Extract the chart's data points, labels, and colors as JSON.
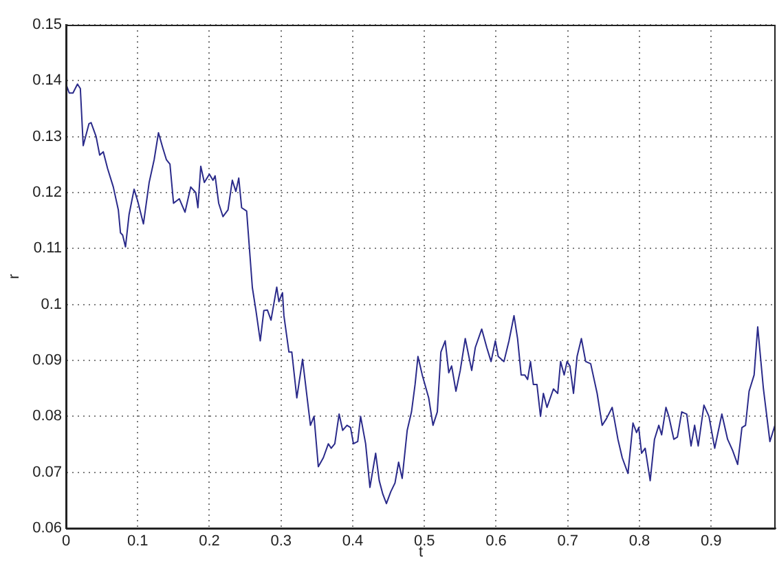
{
  "chart_data": {
    "type": "line",
    "xlabel": "t",
    "ylabel": "r",
    "xlim": [
      0,
      0.99
    ],
    "ylim": [
      0.06,
      0.15
    ],
    "xticks": [
      0,
      0.1,
      0.2,
      0.3,
      0.4,
      0.5,
      0.6,
      0.7,
      0.8,
      0.9
    ],
    "yticks": [
      0.06,
      0.07,
      0.08,
      0.09,
      0.1,
      0.11,
      0.12,
      0.13,
      0.14,
      0.15
    ],
    "grid": true,
    "marker": "none",
    "line_style": "solid",
    "x": [
      0,
      0.0045,
      0.0097,
      0.016,
      0.02,
      0.024,
      0.032,
      0.035,
      0.042,
      0.047,
      0.052,
      0.058,
      0.066,
      0.073,
      0.076,
      0.079,
      0.083,
      0.088,
      0.095,
      0.1,
      0.108,
      0.116,
      0.123,
      0.129,
      0.135,
      0.14,
      0.145,
      0.15,
      0.158,
      0.166,
      0.174,
      0.181,
      0.184,
      0.188,
      0.193,
      0.2,
      0.205,
      0.208,
      0.213,
      0.219,
      0.226,
      0.232,
      0.237,
      0.241,
      0.245,
      0.252,
      0.26,
      0.265,
      0.271,
      0.276,
      0.281,
      0.286,
      0.294,
      0.297,
      0.302,
      0.304,
      0.311,
      0.315,
      0.322,
      0.33,
      0.341,
      0.346,
      0.352,
      0.359,
      0.366,
      0.37,
      0.375,
      0.381,
      0.386,
      0.392,
      0.397,
      0.401,
      0.407,
      0.411,
      0.418,
      0.424,
      0.432,
      0.437,
      0.442,
      0.447,
      0.453,
      0.459,
      0.464,
      0.469,
      0.476,
      0.482,
      0.487,
      0.491,
      0.497,
      0.506,
      0.512,
      0.518,
      0.523,
      0.529,
      0.534,
      0.538,
      0.544,
      0.55,
      0.557,
      0.566,
      0.571,
      0.58,
      0.587,
      0.593,
      0.599,
      0.603,
      0.611,
      0.618,
      0.625,
      0.63,
      0.635,
      0.64,
      0.644,
      0.648,
      0.652,
      0.657,
      0.662,
      0.666,
      0.671,
      0.68,
      0.686,
      0.69,
      0.695,
      0.699,
      0.703,
      0.708,
      0.713,
      0.719,
      0.725,
      0.732,
      0.741,
      0.748,
      0.754,
      0.762,
      0.77,
      0.776,
      0.784,
      0.791,
      0.796,
      0.799,
      0.803,
      0.808,
      0.815,
      0.821,
      0.827,
      0.831,
      0.837,
      0.841,
      0.848,
      0.853,
      0.859,
      0.866,
      0.872,
      0.877,
      0.882,
      0.89,
      0.897,
      0.905,
      0.915,
      0.923,
      0.93,
      0.937,
      0.943,
      0.948,
      0.953,
      0.96,
      0.965,
      0.973,
      0.982,
      0.99
    ],
    "series": [
      {
        "color": "#2a2a8a",
        "values": [
          0.1394,
          0.1378,
          0.1378,
          0.1394,
          0.1386,
          0.1284,
          0.1323,
          0.1325,
          0.13,
          0.1267,
          0.1273,
          0.1243,
          0.121,
          0.1169,
          0.1128,
          0.1124,
          0.1103,
          0.1161,
          0.1206,
          0.1185,
          0.1144,
          0.1218,
          0.1259,
          0.1307,
          0.128,
          0.1259,
          0.1251,
          0.1181,
          0.1189,
          0.1165,
          0.121,
          0.12,
          0.1173,
          0.1247,
          0.1218,
          0.1233,
          0.1222,
          0.123,
          0.1181,
          0.1157,
          0.1169,
          0.1222,
          0.1202,
          0.1226,
          0.1173,
          0.1167,
          0.103,
          0.0989,
          0.0935,
          0.0989,
          0.099,
          0.0972,
          0.1031,
          0.1005,
          0.1021,
          0.098,
          0.0915,
          0.0915,
          0.0833,
          0.0902,
          0.0784,
          0.08,
          0.071,
          0.0726,
          0.0751,
          0.0743,
          0.0751,
          0.0804,
          0.0775,
          0.0784,
          0.078,
          0.0751,
          0.0755,
          0.08,
          0.0751,
          0.0673,
          0.0734,
          0.0685,
          0.0661,
          0.0644,
          0.0665,
          0.0681,
          0.0718,
          0.0689,
          0.0775,
          0.0808,
          0.0857,
          0.0907,
          0.0874,
          0.0833,
          0.0784,
          0.0808,
          0.0915,
          0.0935,
          0.0878,
          0.089,
          0.0845,
          0.0882,
          0.0939,
          0.0882,
          0.0923,
          0.0956,
          0.0923,
          0.0898,
          0.0935,
          0.0907,
          0.0898,
          0.0935,
          0.098,
          0.0939,
          0.0874,
          0.0874,
          0.0866,
          0.0898,
          0.0857,
          0.0857,
          0.08,
          0.0841,
          0.0816,
          0.0849,
          0.0841,
          0.0898,
          0.0874,
          0.0898,
          0.089,
          0.0841,
          0.0907,
          0.0939,
          0.0898,
          0.0894,
          0.0841,
          0.0784,
          0.0796,
          0.0816,
          0.0759,
          0.0726,
          0.0698,
          0.0788,
          0.0771,
          0.078,
          0.0734,
          0.0743,
          0.0685,
          0.0759,
          0.0784,
          0.0767,
          0.0816,
          0.08,
          0.0759,
          0.0763,
          0.0808,
          0.0804,
          0.0747,
          0.0784,
          0.0747,
          0.082,
          0.08,
          0.0743,
          0.0804,
          0.0759,
          0.0739,
          0.0714,
          0.078,
          0.0784,
          0.0845,
          0.0874,
          0.096,
          0.0849,
          0.0755,
          0.0788
        ]
      }
    ]
  }
}
